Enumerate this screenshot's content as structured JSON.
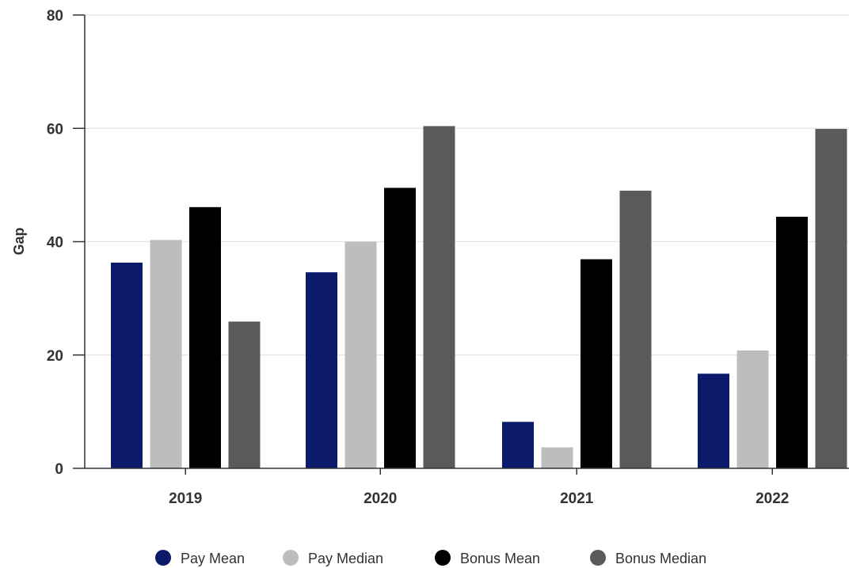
{
  "chart_data": {
    "type": "bar",
    "categories": [
      "2019",
      "2020",
      "2021",
      "2022"
    ],
    "series": [
      {
        "name": "Pay Mean",
        "color": "#0c1a6b",
        "values": [
          36.3,
          34.6,
          8.2,
          16.7
        ]
      },
      {
        "name": "Pay Median",
        "color": "#bdbdbd",
        "values": [
          40.3,
          40.0,
          3.7,
          20.8
        ]
      },
      {
        "name": "Bonus Mean",
        "color": "#000000",
        "values": [
          46.1,
          49.5,
          36.9,
          44.4
        ]
      },
      {
        "name": "Bonus Median",
        "color": "#5a5a5a",
        "values": [
          25.9,
          60.4,
          49.0,
          59.9
        ]
      }
    ],
    "ylabel": "Gap",
    "xlabel": "",
    "ylim": [
      0,
      80
    ],
    "yticks": [
      0,
      20,
      40,
      60,
      80
    ],
    "grid": true,
    "legend": "bottom"
  }
}
